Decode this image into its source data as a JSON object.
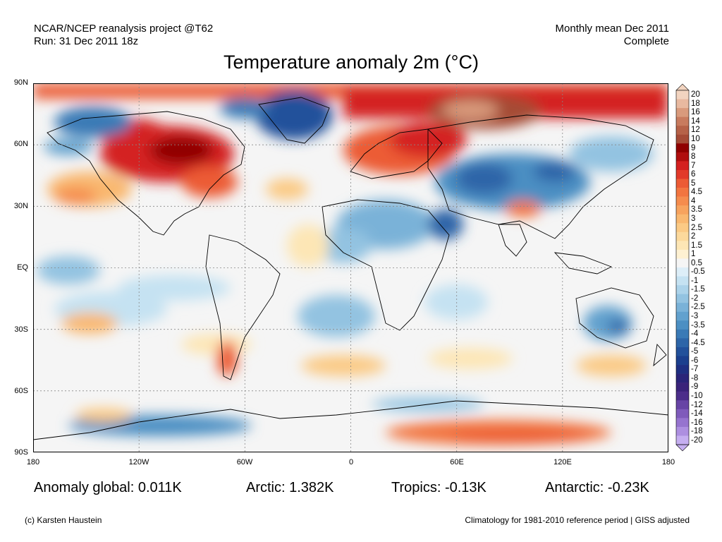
{
  "header": {
    "left_line1": "NCAR/NCEP reanalysis project @T62",
    "left_line2": "Run: 31 Dec 2011 18z",
    "right_line1": "Monthly mean Dec 2011",
    "right_line2": "Complete"
  },
  "title": "Temperature anomaly 2m (°C)",
  "axes": {
    "lat_labels": [
      "90N",
      "60N",
      "30N",
      "EQ",
      "30S",
      "60S",
      "90S"
    ],
    "lat_values": [
      90,
      60,
      30,
      0,
      -30,
      -60,
      -90
    ],
    "lon_labels": [
      "180",
      "120W",
      "60W",
      "0",
      "60E",
      "120E",
      "180"
    ],
    "lon_values": [
      -180,
      -120,
      -60,
      0,
      60,
      120,
      180
    ]
  },
  "colorbar": {
    "levels": [
      "20",
      "18",
      "16",
      "14",
      "12",
      "10",
      "9",
      "8",
      "7",
      "6",
      "5",
      "4.5",
      "4",
      "3.5",
      "3",
      "2.5",
      "2",
      "1.5",
      "1",
      "0.5",
      "-0.5",
      "-1",
      "-1.5",
      "-2",
      "-2.5",
      "-3",
      "-3.5",
      "-4",
      "-4.5",
      "-5",
      "-6",
      "-7",
      "-8",
      "-9",
      "-10",
      "-12",
      "-14",
      "-16",
      "-18",
      "-20"
    ],
    "colors": [
      "#f2d4c0",
      "#e8b9a0",
      "#d99a7c",
      "#c87b5e",
      "#b66248",
      "#a54b36",
      "#900000",
      "#b00e0e",
      "#d42020",
      "#e23a2a",
      "#ec5b35",
      "#f27540",
      "#f58c4e",
      "#f7a35e",
      "#f9b870",
      "#fbca85",
      "#fcd99c",
      "#fde6b5",
      "#fef1d2",
      "#f5f5f5",
      "#ddeef8",
      "#c5e2f2",
      "#acd3ea",
      "#93c3e1",
      "#7ab2d8",
      "#62a1ce",
      "#4c8fc3",
      "#3a7ab6",
      "#2d65a8",
      "#22519b",
      "#1b3f8e",
      "#1e2f82",
      "#2a2479",
      "#3a237a",
      "#4c2e8a",
      "#6744a5",
      "#7f5bbb",
      "#9674cf",
      "#ad8fe0",
      "#c5aef0"
    ]
  },
  "stats": {
    "global": "Anomaly global: 0.011K",
    "arctic": "Arctic: 1.382K",
    "tropics": "Tropics: -0.13K",
    "antarctic": "Antarctic: -0.23K"
  },
  "footer": {
    "left": "(c) Karsten Haustein",
    "right": "Climatology for 1981-2010 reference period | GISS adjusted"
  }
}
